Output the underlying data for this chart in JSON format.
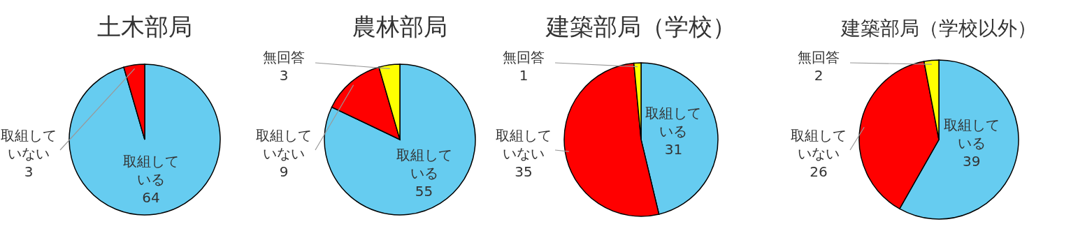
{
  "chart_data": [
    {
      "type": "pie",
      "title": "土木部局",
      "categories": [
        "取組している",
        "取組していない"
      ],
      "values": [
        64,
        3
      ],
      "colors": [
        "#66ccf0",
        "#ff0000"
      ],
      "data_labels": true
    },
    {
      "type": "pie",
      "title": "農林部局",
      "categories": [
        "取組している",
        "取組していない",
        "無回答"
      ],
      "values": [
        55,
        9,
        3
      ],
      "colors": [
        "#66ccf0",
        "#ff0000",
        "#ffff00"
      ],
      "data_labels": true
    },
    {
      "type": "pie",
      "title": "建築部局（学校）",
      "categories": [
        "取組している",
        "取組していない",
        "無回答"
      ],
      "values": [
        31,
        35,
        1
      ],
      "colors": [
        "#66ccf0",
        "#ff0000",
        "#ffff00"
      ],
      "data_labels": true
    },
    {
      "type": "pie",
      "title": "建築部局（学校以外）",
      "categories": [
        "取組している",
        "取組していない",
        "無回答"
      ],
      "values": [
        39,
        26,
        2
      ],
      "colors": [
        "#66ccf0",
        "#ff0000",
        "#ffff00"
      ],
      "data_labels": true
    }
  ]
}
